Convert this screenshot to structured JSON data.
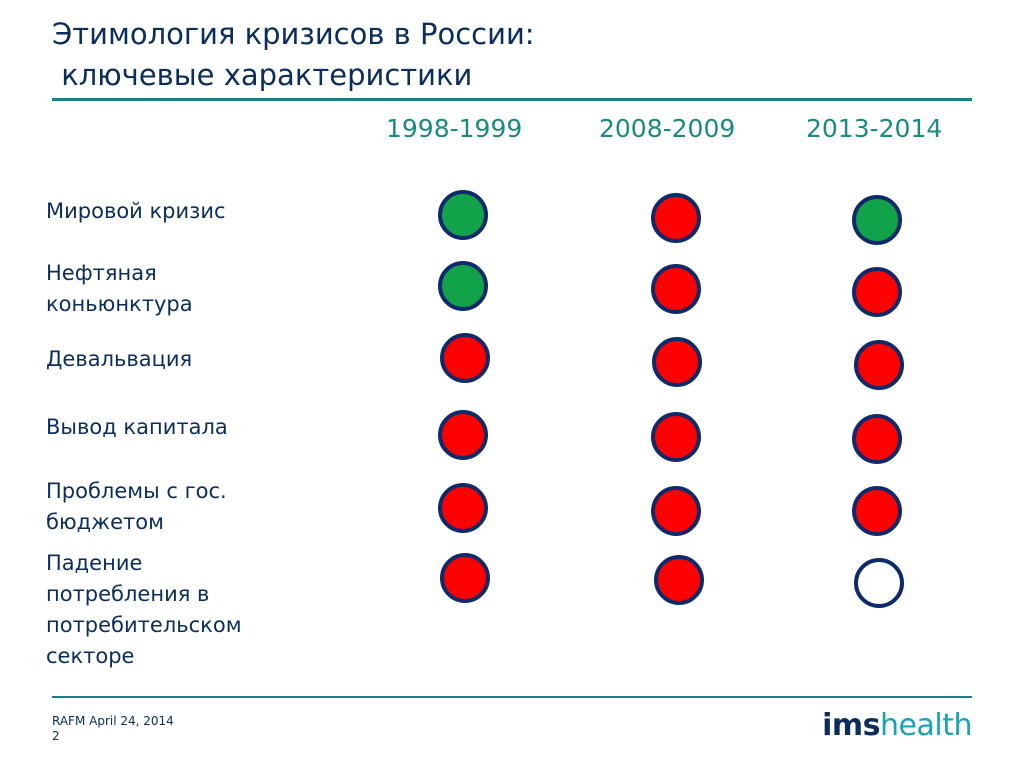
{
  "title": {
    "line1": "Этимология кризисов в России:",
    "line2": " ключевые характеристики"
  },
  "years": [
    "1998-1999",
    "2008-2009",
    "2013-2014"
  ],
  "colors": {
    "green": "#12a34a",
    "red": "#ff0000",
    "none": "#ffffff",
    "outline": "#0e2a6a"
  },
  "rows": [
    {
      "label": [
        "Мировой кризис"
      ],
      "status": [
        "green",
        "red",
        "green"
      ]
    },
    {
      "label": [
        "Нефтяная",
        "коньюнктура"
      ],
      "status": [
        "green",
        "red",
        "red"
      ]
    },
    {
      "label": [
        "Девальвация"
      ],
      "status": [
        "red",
        "red",
        "red"
      ]
    },
    {
      "label": [
        "Вывод капитала"
      ],
      "status": [
        "red",
        "red",
        "red"
      ]
    },
    {
      "label": [
        "Проблемы с гос.",
        "бюджетом"
      ],
      "status": [
        "red",
        "red",
        "red"
      ]
    },
    {
      "label": [
        "Падение",
        "потребления в",
        "потребительском",
        "секторе"
      ],
      "status": [
        "red",
        "red",
        "none"
      ]
    }
  ],
  "footer": {
    "line1": "RAFM April 24, 2014",
    "page": "2"
  },
  "logo": {
    "part1": "ims",
    "part2": "health"
  }
}
